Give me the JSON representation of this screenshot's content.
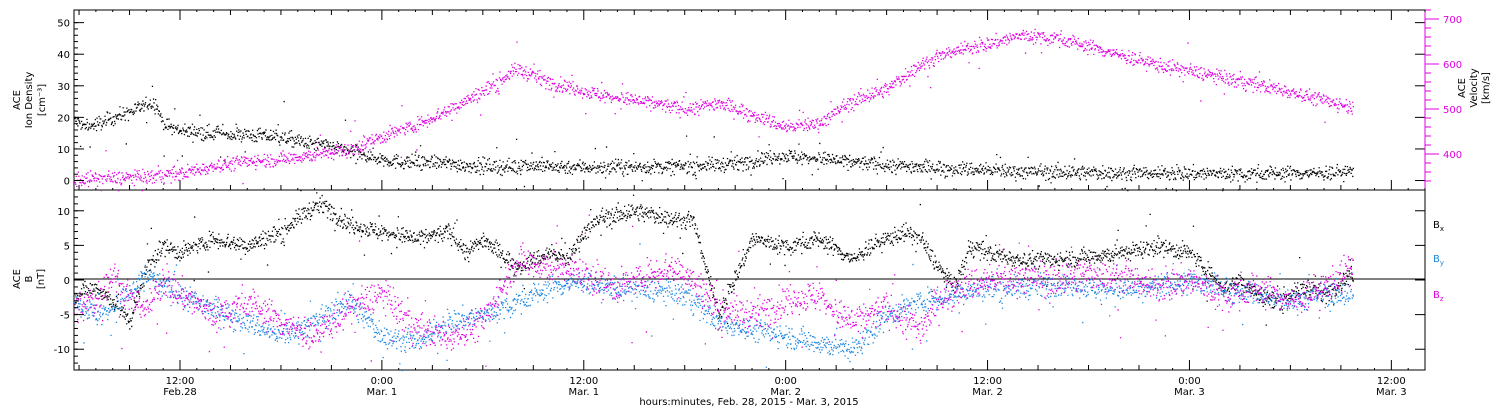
{
  "chart_data": {
    "type": "scatter",
    "xlabel": "hours:minutes, Feb. 28, 2015 - Mar. 3, 2015",
    "x_tick_labels": [
      {
        "time": "12:00",
        "date": "Feb.28",
        "hours": 12
      },
      {
        "time": "0:00",
        "date": "Mar. 1",
        "hours": 24
      },
      {
        "time": "12:00",
        "date": "Mar. 1",
        "hours": 36
      },
      {
        "time": "0:00",
        "date": "Mar. 2",
        "hours": 48
      },
      {
        "time": "12:00",
        "date": "Mar. 2",
        "hours": 60
      },
      {
        "time": "0:00",
        "date": "Mar. 3",
        "hours": 72
      },
      {
        "time": "12:00",
        "date": "Mar. 3",
        "hours": 84
      }
    ],
    "x_range_hours": [
      5.7,
      86
    ],
    "panels": [
      {
        "id": "plasma",
        "left_axis": {
          "label_lines": [
            "ACE",
            "Ion Density",
            "[cm⁻³]"
          ],
          "range": [
            -3,
            54
          ],
          "ticks": [
            "0",
            "10",
            "20",
            "30",
            "40",
            "50"
          ],
          "color": "#000000"
        },
        "right_axis": {
          "label_lines": [
            "ACE",
            "Velocity",
            "[km/s]"
          ],
          "range": [
            320,
            720
          ],
          "ticks": [
            "400",
            "500",
            "600",
            "700"
          ],
          "color": "#e000e0"
        },
        "series": [
          {
            "key": "density",
            "axis": "left",
            "color": "#000000",
            "points": [
              [
                5.7,
                19
              ],
              [
                6.5,
                17
              ],
              [
                7.5,
                19
              ],
              [
                8.5,
                21
              ],
              [
                9.5,
                23
              ],
              [
                10.5,
                25
              ],
              [
                11,
                18
              ],
              [
                12,
                16
              ],
              [
                14,
                15
              ],
              [
                16,
                14.5
              ],
              [
                18,
                14
              ],
              [
                19.5,
                12
              ],
              [
                21,
                11
              ],
              [
                23,
                8
              ],
              [
                25,
                6
              ],
              [
                27,
                6
              ],
              [
                29,
                5
              ],
              [
                31,
                4.5
              ],
              [
                33,
                5
              ],
              [
                35,
                4.5
              ],
              [
                37,
                4.5
              ],
              [
                39,
                4.5
              ],
              [
                41,
                4.5
              ],
              [
                43,
                5
              ],
              [
                45,
                5.5
              ],
              [
                46.5,
                7
              ],
              [
                48,
                8
              ],
              [
                50,
                7
              ],
              [
                52,
                6
              ],
              [
                54,
                5
              ],
              [
                56,
                4.5
              ],
              [
                58,
                4
              ],
              [
                60,
                3.5
              ],
              [
                62,
                3
              ],
              [
                64,
                2.8
              ],
              [
                66,
                2.6
              ],
              [
                68,
                2.5
              ],
              [
                70,
                2.4
              ],
              [
                72,
                2.4
              ],
              [
                74,
                2.4
              ],
              [
                76,
                2.5
              ],
              [
                78,
                2.5
              ],
              [
                80,
                2.6
              ],
              [
                81.7,
                3
              ]
            ],
            "spread": 2.2
          },
          {
            "key": "velocity",
            "axis": "right",
            "color": "#e000e0",
            "points": [
              [
                5.7,
                345
              ],
              [
                8,
                347
              ],
              [
                10,
                350
              ],
              [
                12,
                358
              ],
              [
                14,
                375
              ],
              [
                16,
                385
              ],
              [
                18,
                390
              ],
              [
                20,
                400
              ],
              [
                22,
                410
              ],
              [
                24,
                440
              ],
              [
                26,
                465
              ],
              [
                28,
                500
              ],
              [
                30,
                540
              ],
              [
                32,
                590
              ],
              [
                34,
                560
              ],
              [
                36,
                540
              ],
              [
                38,
                525
              ],
              [
                40,
                515
              ],
              [
                42,
                500
              ],
              [
                44,
                515
              ],
              [
                46,
                490
              ],
              [
                48,
                460
              ],
              [
                50,
                470
              ],
              [
                52,
                520
              ],
              [
                54,
                545
              ],
              [
                56,
                600
              ],
              [
                58,
                630
              ],
              [
                60,
                645
              ],
              [
                62,
                665
              ],
              [
                64,
                660
              ],
              [
                66,
                640
              ],
              [
                68,
                620
              ],
              [
                70,
                600
              ],
              [
                72,
                585
              ],
              [
                74,
                570
              ],
              [
                76,
                555
              ],
              [
                78,
                540
              ],
              [
                80,
                520
              ],
              [
                81.7,
                505
              ]
            ],
            "spread": 15
          }
        ]
      },
      {
        "id": "field",
        "left_axis": {
          "label_lines": [
            "ACE",
            "B",
            "[nT]"
          ],
          "range": [
            -13,
            13
          ],
          "ticks": [
            "10",
            "5",
            "0",
            "-5",
            "-10"
          ],
          "color": "#000000"
        },
        "zero_line": true,
        "legend": [
          {
            "label": "B",
            "sub": "x",
            "color": "#000000"
          },
          {
            "label": "B",
            "sub": "y",
            "color": "#1e88e0"
          },
          {
            "label": "B",
            "sub": "z",
            "color": "#e000e0"
          }
        ],
        "series": [
          {
            "key": "bx",
            "color": "#000000",
            "points": [
              [
                5.7,
                -2
              ],
              [
                7,
                -1
              ],
              [
                8,
                -3
              ],
              [
                9,
                -6
              ],
              [
                10,
                2
              ],
              [
                11,
                5
              ],
              [
                12,
                4
              ],
              [
                14,
                6
              ],
              [
                16,
                5
              ],
              [
                18,
                7
              ],
              [
                19.5,
                10
              ],
              [
                20.5,
                11
              ],
              [
                22,
                8
              ],
              [
                24,
                7
              ],
              [
                26,
                6
              ],
              [
                28,
                7
              ],
              [
                29,
                4
              ],
              [
                30,
                6
              ],
              [
                32,
                2
              ],
              [
                34,
                4
              ],
              [
                35,
                3
              ],
              [
                36,
                7
              ],
              [
                37,
                9
              ],
              [
                38,
                9.5
              ],
              [
                39,
                10
              ],
              [
                40,
                9.5
              ],
              [
                41,
                9
              ],
              [
                42.5,
                8.5
              ],
              [
                44,
                -5
              ],
              [
                46,
                6
              ],
              [
                48,
                5
              ],
              [
                50,
                6
              ],
              [
                52,
                3
              ],
              [
                53,
                5
              ],
              [
                54,
                6
              ],
              [
                55,
                7
              ],
              [
                56,
                6
              ],
              [
                57,
                2
              ],
              [
                58,
                -1
              ],
              [
                59,
                5
              ],
              [
                60,
                4
              ],
              [
                61,
                3.5
              ],
              [
                62,
                3
              ],
              [
                64,
                3
              ],
              [
                66,
                3.5
              ],
              [
                68,
                4
              ],
              [
                70,
                5
              ],
              [
                72,
                4
              ],
              [
                74,
                -1
              ],
              [
                75,
                0
              ],
              [
                76,
                -2
              ],
              [
                77,
                -3
              ],
              [
                78,
                -2
              ],
              [
                79,
                -1
              ],
              [
                80,
                -2
              ],
              [
                81.7,
                1
              ]
            ],
            "spread": 1.2
          },
          {
            "key": "by",
            "color": "#1e88e0",
            "points": [
              [
                5.7,
                -3
              ],
              [
                7,
                -5
              ],
              [
                8,
                -4
              ],
              [
                9,
                -2
              ],
              [
                10,
                1
              ],
              [
                11,
                -1
              ],
              [
                12,
                -2
              ],
              [
                14,
                -4
              ],
              [
                16,
                -6
              ],
              [
                18,
                -8
              ],
              [
                20,
                -6
              ],
              [
                22,
                -3
              ],
              [
                24,
                -8
              ],
              [
                26,
                -9
              ],
              [
                28,
                -6
              ],
              [
                30,
                -5
              ],
              [
                32,
                -3
              ],
              [
                34,
                -1
              ],
              [
                36,
                0
              ],
              [
                37,
                -1
              ],
              [
                38,
                -1
              ],
              [
                40,
                -1.5
              ],
              [
                42,
                -2
              ],
              [
                44,
                -6
              ],
              [
                46,
                -7
              ],
              [
                48,
                -8
              ],
              [
                50,
                -9
              ],
              [
                52,
                -10
              ],
              [
                54,
                -5
              ],
              [
                56,
                -3
              ],
              [
                58,
                -2
              ],
              [
                60,
                -1
              ],
              [
                62,
                -1
              ],
              [
                64,
                -0.5
              ],
              [
                66,
                -1
              ],
              [
                68,
                -1.5
              ],
              [
                70,
                -1
              ],
              [
                72,
                0
              ],
              [
                74,
                -1
              ],
              [
                76,
                -2
              ],
              [
                78,
                -3
              ],
              [
                80,
                -2
              ],
              [
                81.7,
                -2
              ]
            ],
            "spread": 1.6
          },
          {
            "key": "bz",
            "color": "#e000e0",
            "points": [
              [
                5.7,
                -4
              ],
              [
                7,
                -3
              ],
              [
                8,
                1
              ],
              [
                9,
                -3
              ],
              [
                10,
                -4
              ],
              [
                11,
                0
              ],
              [
                12,
                -2
              ],
              [
                14,
                -5
              ],
              [
                16,
                -3
              ],
              [
                18,
                -6
              ],
              [
                20,
                -8
              ],
              [
                22,
                -4
              ],
              [
                24,
                -2
              ],
              [
                26,
                -7
              ],
              [
                28,
                -8
              ],
              [
                30,
                -6
              ],
              [
                32,
                3
              ],
              [
                34,
                2
              ],
              [
                36,
                1
              ],
              [
                38,
                -1
              ],
              [
                39,
                0
              ],
              [
                40,
                1
              ],
              [
                41,
                2
              ],
              [
                42,
                1
              ],
              [
                44,
                -4
              ],
              [
                46,
                -5
              ],
              [
                48,
                -3
              ],
              [
                50,
                -2
              ],
              [
                51,
                -5
              ],
              [
                52,
                -6
              ],
              [
                54,
                -4
              ],
              [
                56,
                -7
              ],
              [
                57,
                -3
              ],
              [
                58,
                -1
              ],
              [
                60,
                0
              ],
              [
                62,
                0.5
              ],
              [
                64,
                0
              ],
              [
                66,
                1
              ],
              [
                68,
                0.5
              ],
              [
                70,
                -1
              ],
              [
                72,
                0
              ],
              [
                74,
                -2
              ],
              [
                76,
                -1
              ],
              [
                78,
                -3
              ],
              [
                80,
                -1
              ],
              [
                81.7,
                2
              ]
            ],
            "spread": 2.2
          }
        ]
      }
    ]
  }
}
